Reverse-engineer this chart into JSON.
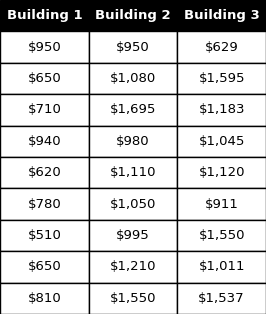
{
  "headers": [
    "Building 1",
    "Building 2",
    "Building 3"
  ],
  "rows": [
    [
      "$950",
      "$950",
      "$629"
    ],
    [
      "$650",
      "$1,080",
      "$1,595"
    ],
    [
      "$710",
      "$1,695",
      "$1,183"
    ],
    [
      "$940",
      "$980",
      "$1,045"
    ],
    [
      "$620",
      "$1,110",
      "$1,120"
    ],
    [
      "$780",
      "$1,050",
      "$911"
    ],
    [
      "$510",
      "$995",
      "$1,550"
    ],
    [
      "$650",
      "$1,210",
      "$1,011"
    ],
    [
      "$810",
      "$1,550",
      "$1,537"
    ]
  ],
  "header_bg": "#000000",
  "header_fg": "#ffffff",
  "cell_bg": "#ffffff",
  "cell_fg": "#000000",
  "border_color": "#000000",
  "header_fontsize": 9.5,
  "cell_fontsize": 9.5,
  "fig_width": 2.66,
  "fig_height": 3.14,
  "dpi": 100
}
